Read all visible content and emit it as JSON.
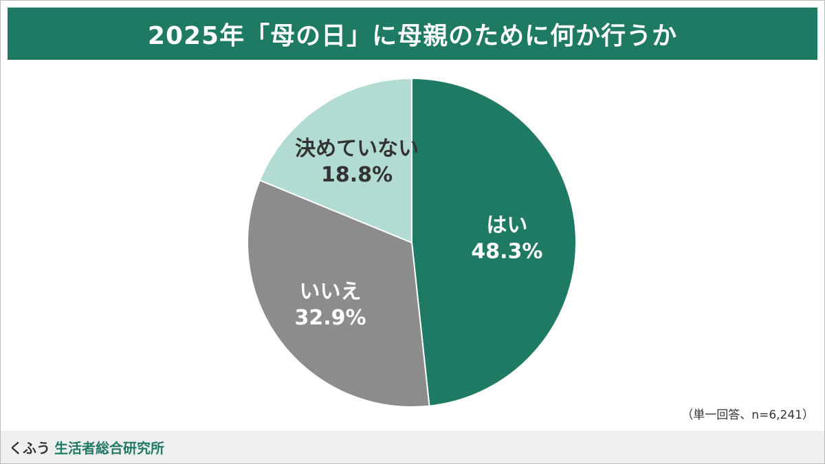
{
  "header": {
    "title": "2025年「母の日」に母親のために何か行うか"
  },
  "chart_data": {
    "type": "pie",
    "title": "2025年「母の日」に母親のために何か行うか",
    "slices": [
      {
        "label": "はい",
        "value": 48.3,
        "value_text": "48.3%",
        "color": "#1f7a64",
        "label_color": "#ffffff"
      },
      {
        "label": "いいえ",
        "value": 32.9,
        "value_text": "32.9%",
        "color": "#8c8c8c",
        "label_color": "#ffffff"
      },
      {
        "label": "決めていない",
        "value": 18.8,
        "value_text": "18.8%",
        "color": "#b2dbd2",
        "label_color": "#333333"
      }
    ],
    "start": "12 o'clock",
    "direction": "clockwise",
    "note": "（単一回答、n=6,241）"
  },
  "footer": {
    "brand_primary": "くふう",
    "brand_secondary": "生活者総合研究所"
  }
}
